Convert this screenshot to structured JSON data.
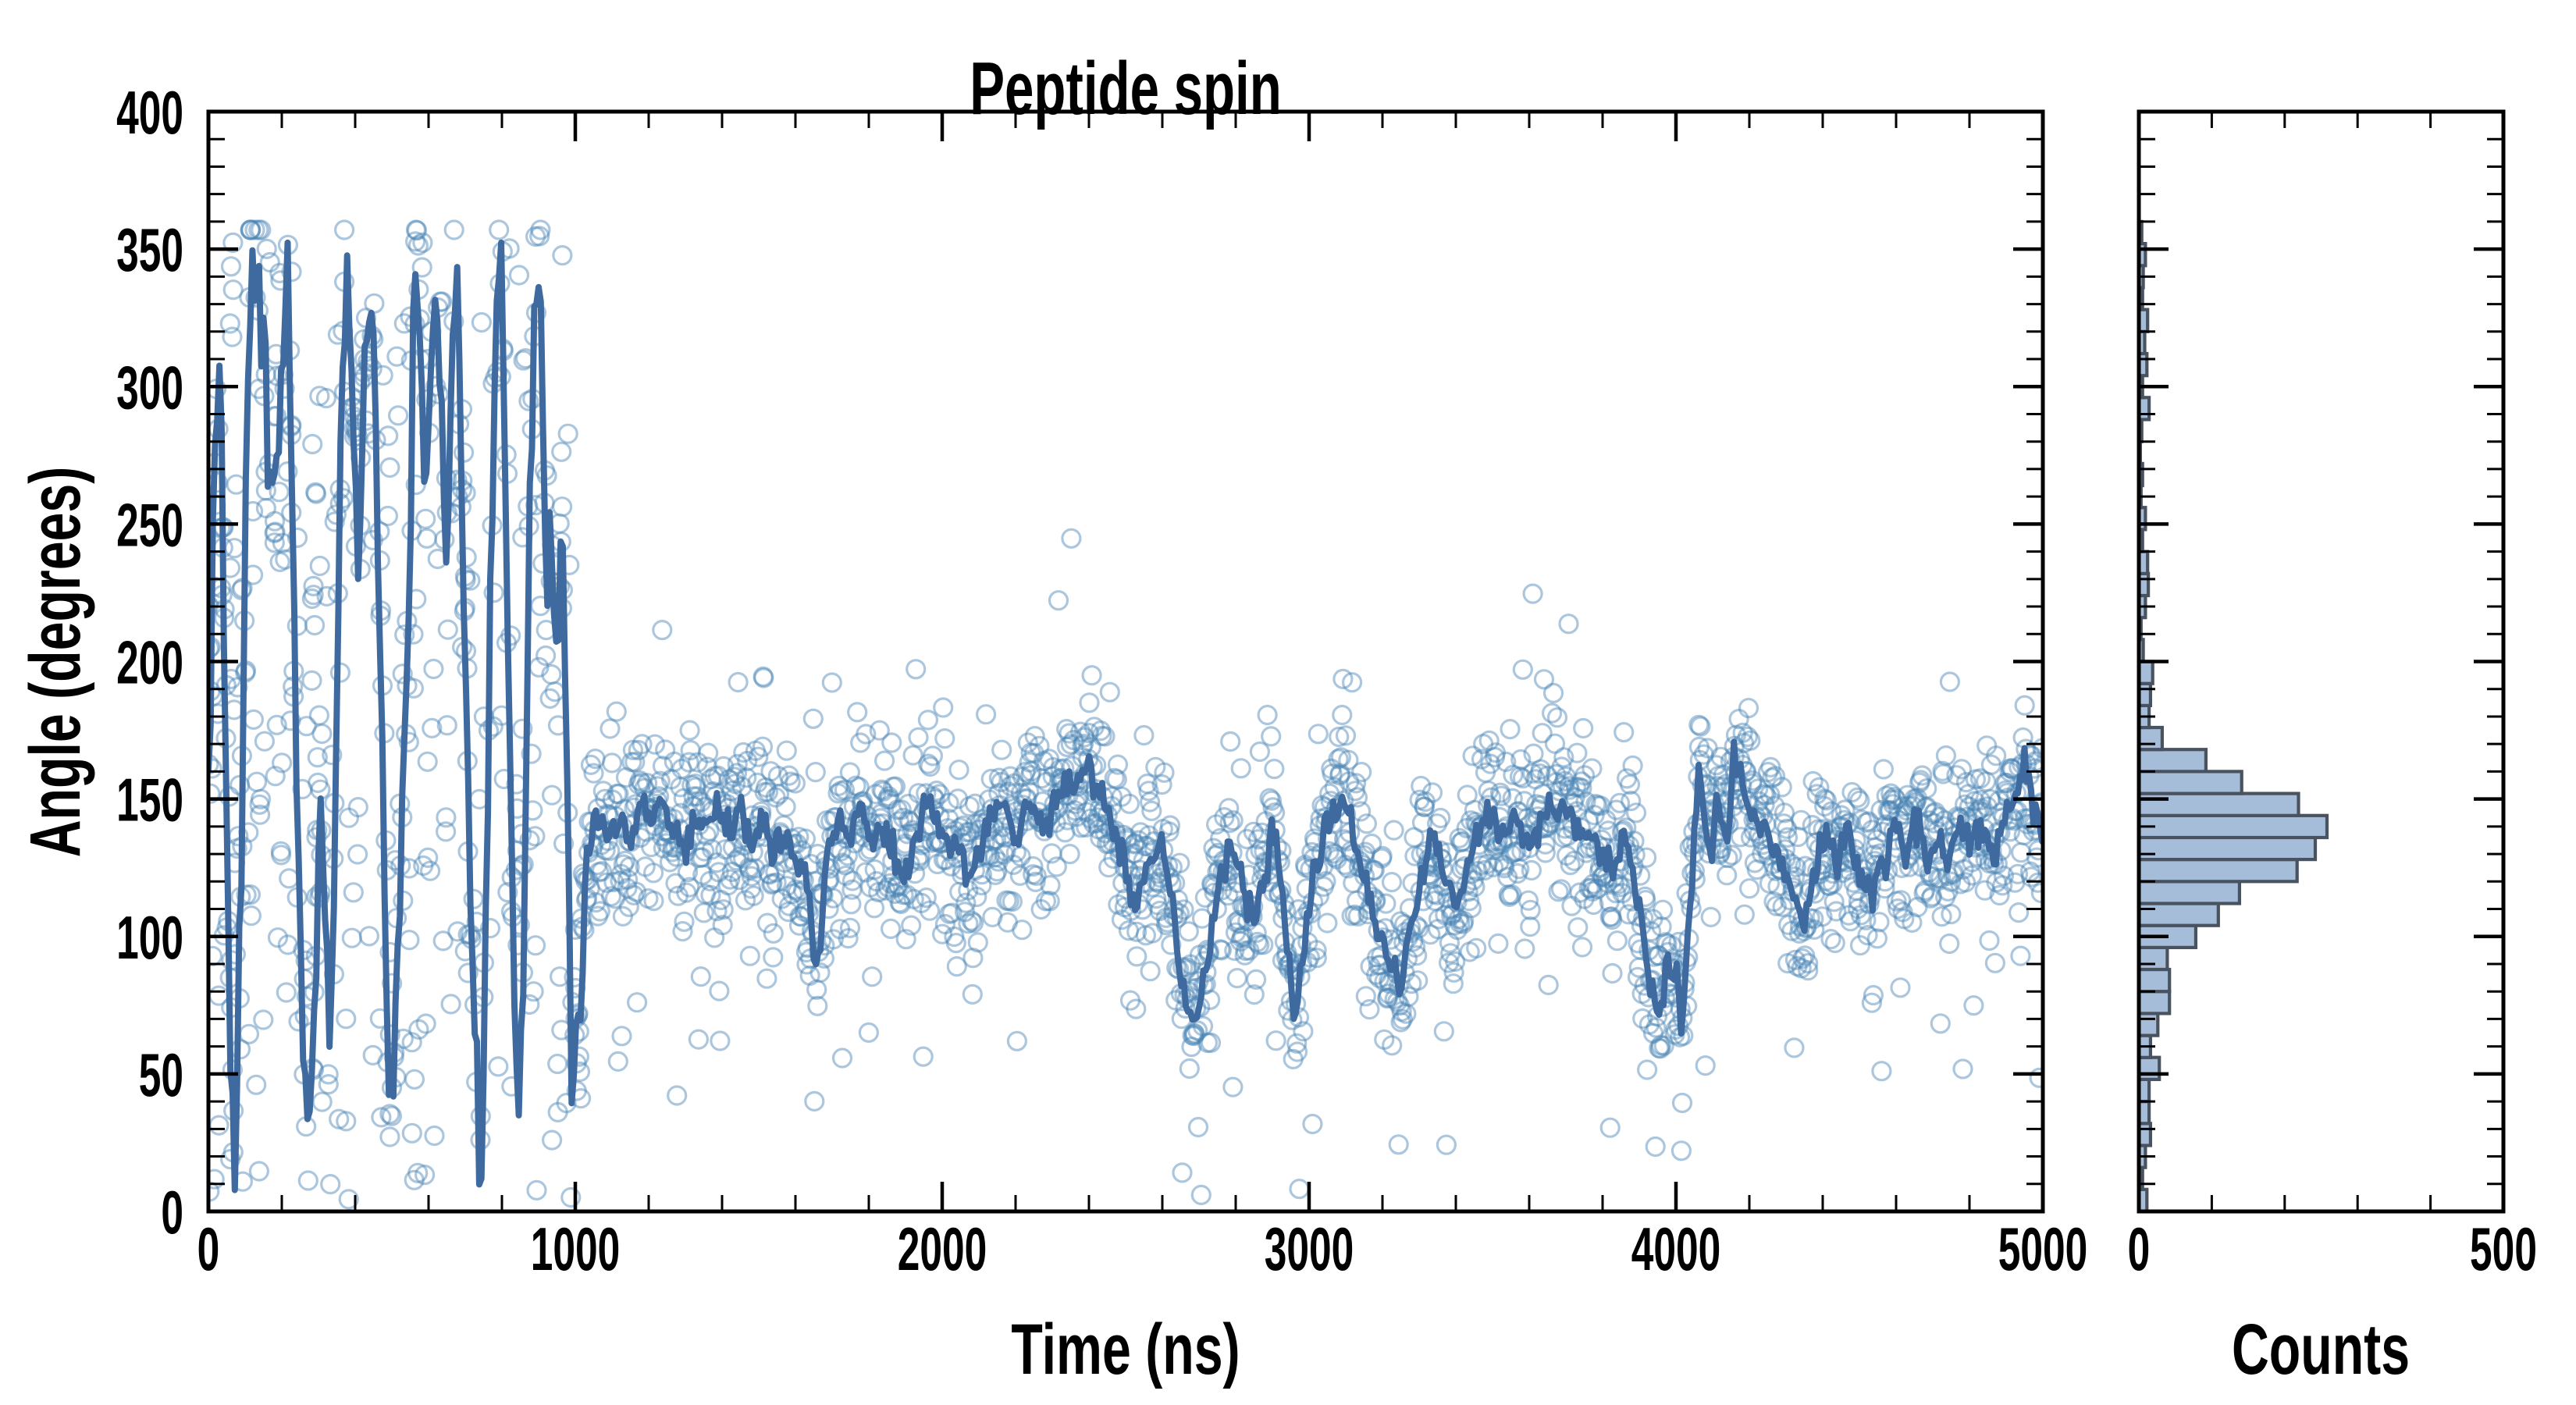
{
  "figure": {
    "title": "Peptide spin",
    "background": "#ffffff"
  },
  "colors": {
    "axis": "#000000",
    "scatter_marker": "rgba(70,130,180,0.45)",
    "mean_line": "#3e6aa0",
    "hist_fill": "#a6bdd9",
    "hist_edge": "#49525f"
  },
  "chart_data": [
    {
      "type": "scatter",
      "title": "Peptide spin",
      "xlabel": "Time (ns)",
      "ylabel": "Angle (degrees)",
      "xlim": [
        0,
        5000
      ],
      "ylim": [
        0,
        400
      ],
      "grid": false,
      "legend": null,
      "x_major_ticks": [
        0,
        1000,
        2000,
        3000,
        4000,
        5000
      ],
      "x_tick_labels": [
        "0",
        "1000",
        "2000",
        "3000",
        "4000",
        "5000"
      ],
      "x_minor_step": 200,
      "y_major_ticks": [
        0,
        50,
        100,
        150,
        200,
        250,
        300,
        350,
        400
      ],
      "y_tick_labels": [
        "0",
        "50",
        "100",
        "150",
        "200",
        "250",
        "300",
        "350",
        "400"
      ],
      "y_minor_step": 10,
      "series": [
        {
          "name": "raw-angle-samples",
          "style": "open-circle-scatter",
          "approx_n_points": 2430
        },
        {
          "name": "running-mean",
          "style": "thick-line",
          "line_width": 8
        }
      ],
      "mean_line_anchors": [
        [
          0,
          150
        ],
        [
          15,
          255
        ],
        [
          30,
          320
        ],
        [
          45,
          180
        ],
        [
          60,
          45
        ],
        [
          75,
          20
        ],
        [
          90,
          130
        ],
        [
          105,
          300
        ],
        [
          120,
          345
        ],
        [
          140,
          330
        ],
        [
          160,
          285
        ],
        [
          180,
          255
        ],
        [
          200,
          300
        ],
        [
          215,
          340
        ],
        [
          230,
          235
        ],
        [
          245,
          120
        ],
        [
          260,
          55
        ],
        [
          275,
          20
        ],
        [
          290,
          85
        ],
        [
          305,
          150
        ],
        [
          320,
          110
        ],
        [
          335,
          60
        ],
        [
          350,
          180
        ],
        [
          365,
          320
        ],
        [
          380,
          335
        ],
        [
          395,
          285
        ],
        [
          410,
          240
        ],
        [
          425,
          305
        ],
        [
          440,
          345
        ],
        [
          455,
          300
        ],
        [
          470,
          190
        ],
        [
          485,
          75
        ],
        [
          500,
          30
        ],
        [
          515,
          95
        ],
        [
          530,
          150
        ],
        [
          545,
          205
        ],
        [
          560,
          330
        ],
        [
          575,
          340
        ],
        [
          590,
          260
        ],
        [
          605,
          300
        ],
        [
          620,
          335
        ],
        [
          635,
          290
        ],
        [
          650,
          245
        ],
        [
          665,
          320
        ],
        [
          680,
          340
        ],
        [
          695,
          230
        ],
        [
          710,
          150
        ],
        [
          725,
          65
        ],
        [
          740,
          15
        ],
        [
          755,
          90
        ],
        [
          770,
          235
        ],
        [
          785,
          330
        ],
        [
          800,
          340
        ],
        [
          815,
          225
        ],
        [
          830,
          95
        ],
        [
          845,
          30
        ],
        [
          860,
          90
        ],
        [
          875,
          245
        ],
        [
          890,
          330
        ],
        [
          905,
          340
        ],
        [
          920,
          230
        ],
        [
          935,
          250
        ],
        [
          950,
          205
        ],
        [
          965,
          250
        ],
        [
          980,
          150
        ],
        [
          990,
          60
        ],
        [
          1000,
          68
        ],
        [
          1015,
          72
        ],
        [
          1030,
          132
        ],
        [
          1060,
          142
        ],
        [
          1090,
          138
        ],
        [
          1120,
          144
        ],
        [
          1150,
          135
        ],
        [
          1180,
          148
        ],
        [
          1210,
          140
        ],
        [
          1240,
          152
        ],
        [
          1270,
          138
        ],
        [
          1300,
          132
        ],
        [
          1330,
          145
        ],
        [
          1360,
          138
        ],
        [
          1390,
          150
        ],
        [
          1420,
          136
        ],
        [
          1450,
          148
        ],
        [
          1480,
          132
        ],
        [
          1510,
          142
        ],
        [
          1540,
          128
        ],
        [
          1570,
          138
        ],
        [
          1600,
          130
        ],
        [
          1630,
          120
        ],
        [
          1650,
          95
        ],
        [
          1665,
          93
        ],
        [
          1685,
          128
        ],
        [
          1720,
          140
        ],
        [
          1750,
          135
        ],
        [
          1780,
          148
        ],
        [
          1810,
          132
        ],
        [
          1840,
          142
        ],
        [
          1870,
          130
        ],
        [
          1900,
          118
        ],
        [
          1930,
          138
        ],
        [
          1960,
          150
        ],
        [
          2000,
          140
        ],
        [
          2040,
          132
        ],
        [
          2080,
          122
        ],
        [
          2120,
          138
        ],
        [
          2160,
          148
        ],
        [
          2200,
          136
        ],
        [
          2240,
          150
        ],
        [
          2280,
          140
        ],
        [
          2320,
          152
        ],
        [
          2360,
          158
        ],
        [
          2400,
          162
        ],
        [
          2440,
          148
        ],
        [
          2480,
          135
        ],
        [
          2520,
          110
        ],
        [
          2560,
          125
        ],
        [
          2600,
          135
        ],
        [
          2630,
          105
        ],
        [
          2660,
          78
        ],
        [
          2690,
          66
        ],
        [
          2720,
          90
        ],
        [
          2750,
          115
        ],
        [
          2780,
          132
        ],
        [
          2820,
          118
        ],
        [
          2850,
          102
        ],
        [
          2880,
          128
        ],
        [
          2910,
          140
        ],
        [
          2940,
          95
        ],
        [
          2960,
          70
        ],
        [
          2980,
          92
        ],
        [
          3010,
          120
        ],
        [
          3050,
          142
        ],
        [
          3090,
          150
        ],
        [
          3130,
          132
        ],
        [
          3170,
          110
        ],
        [
          3210,
          92
        ],
        [
          3250,
          84
        ],
        [
          3290,
          108
        ],
        [
          3330,
          138
        ],
        [
          3370,
          120
        ],
        [
          3400,
          110
        ],
        [
          3440,
          130
        ],
        [
          3480,
          145
        ],
        [
          3520,
          138
        ],
        [
          3560,
          142
        ],
        [
          3600,
          136
        ],
        [
          3640,
          146
        ],
        [
          3680,
          148
        ],
        [
          3720,
          142
        ],
        [
          3760,
          136
        ],
        [
          3800,
          130
        ],
        [
          3830,
          122
        ],
        [
          3860,
          138
        ],
        [
          3900,
          112
        ],
        [
          3930,
          80
        ],
        [
          3955,
          70
        ],
        [
          3975,
          90
        ],
        [
          4000,
          86
        ],
        [
          4015,
          68
        ],
        [
          4040,
          118
        ],
        [
          4065,
          158
        ],
        [
          4090,
          132
        ],
        [
          4115,
          150
        ],
        [
          4140,
          130
        ],
        [
          4160,
          170
        ],
        [
          4185,
          152
        ],
        [
          4220,
          146
        ],
        [
          4255,
          136
        ],
        [
          4290,
          126
        ],
        [
          4320,
          115
        ],
        [
          4350,
          104
        ],
        [
          4380,
          124
        ],
        [
          4410,
          140
        ],
        [
          4440,
          126
        ],
        [
          4470,
          138
        ],
        [
          4500,
          124
        ],
        [
          4530,
          114
        ],
        [
          4560,
          130
        ],
        [
          4590,
          140
        ],
        [
          4620,
          130
        ],
        [
          4650,
          142
        ],
        [
          4680,
          130
        ],
        [
          4710,
          138
        ],
        [
          4740,
          126
        ],
        [
          4770,
          140
        ],
        [
          4800,
          134
        ],
        [
          4830,
          142
        ],
        [
          4860,
          130
        ],
        [
          4890,
          140
        ],
        [
          4920,
          150
        ],
        [
          4950,
          162
        ],
        [
          4975,
          148
        ],
        [
          5000,
          136
        ]
      ],
      "scatter_spec": {
        "seed": 1337,
        "stable_n": 1950,
        "stable_noise_sd": 16,
        "outlier_frac": 0.035,
        "chaotic_n": 480,
        "chaotic_uniform_frac": 0.55,
        "chaotic_near_line_sd": 26
      }
    },
    {
      "type": "bar",
      "orientation": "horizontal",
      "xlabel": "Counts",
      "xlim": [
        0,
        500
      ],
      "x_major_ticks": [
        0,
        500
      ],
      "x_tick_labels": [
        "0",
        "500"
      ],
      "x_minor_step": 100,
      "ylim": [
        0,
        400
      ],
      "y_minor_step": 10,
      "y_major_step": 50,
      "bin_start": 0,
      "bin_width": 8,
      "counts": [
        11,
        5,
        9,
        16,
        14,
        14,
        28,
        16,
        26,
        42,
        42,
        39,
        78,
        109,
        138,
        217,
        242,
        258,
        219,
        141,
        92,
        32,
        14,
        16,
        19,
        6,
        3,
        9,
        13,
        12,
        5,
        9,
        3,
        5,
        2,
        4,
        14,
        5,
        11,
        8,
        12,
        5,
        6,
        9,
        4
      ]
    }
  ]
}
